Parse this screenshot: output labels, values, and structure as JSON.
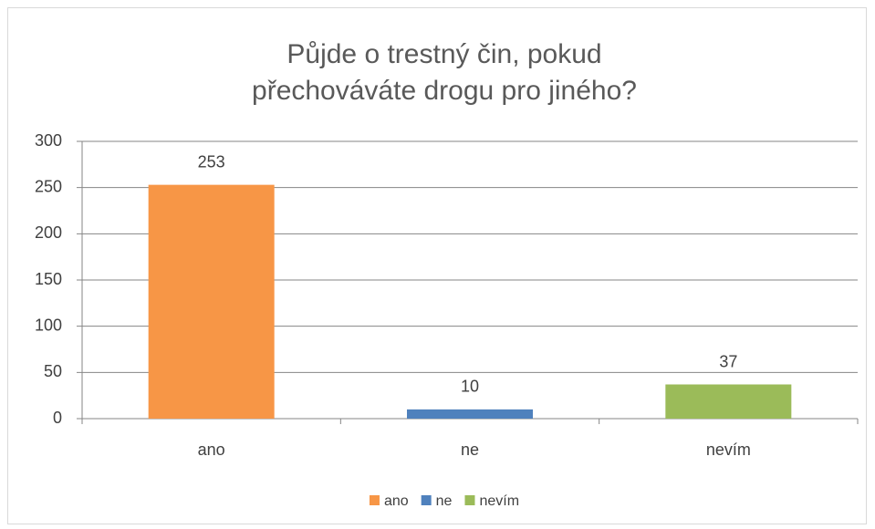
{
  "chart_data": {
    "type": "bar",
    "title": "Půjde o trestný čin, pokud přechováváte drogu pro jiného?",
    "categories": [
      "ano",
      "ne",
      "nevím"
    ],
    "values": [
      253,
      10,
      37
    ],
    "colors": [
      "#f79646",
      "#4f81bd",
      "#9bbb59"
    ],
    "ylim": [
      0,
      300
    ],
    "yticks": [
      0,
      50,
      100,
      150,
      200,
      250,
      300
    ],
    "grid": true,
    "legend": "bottom"
  }
}
